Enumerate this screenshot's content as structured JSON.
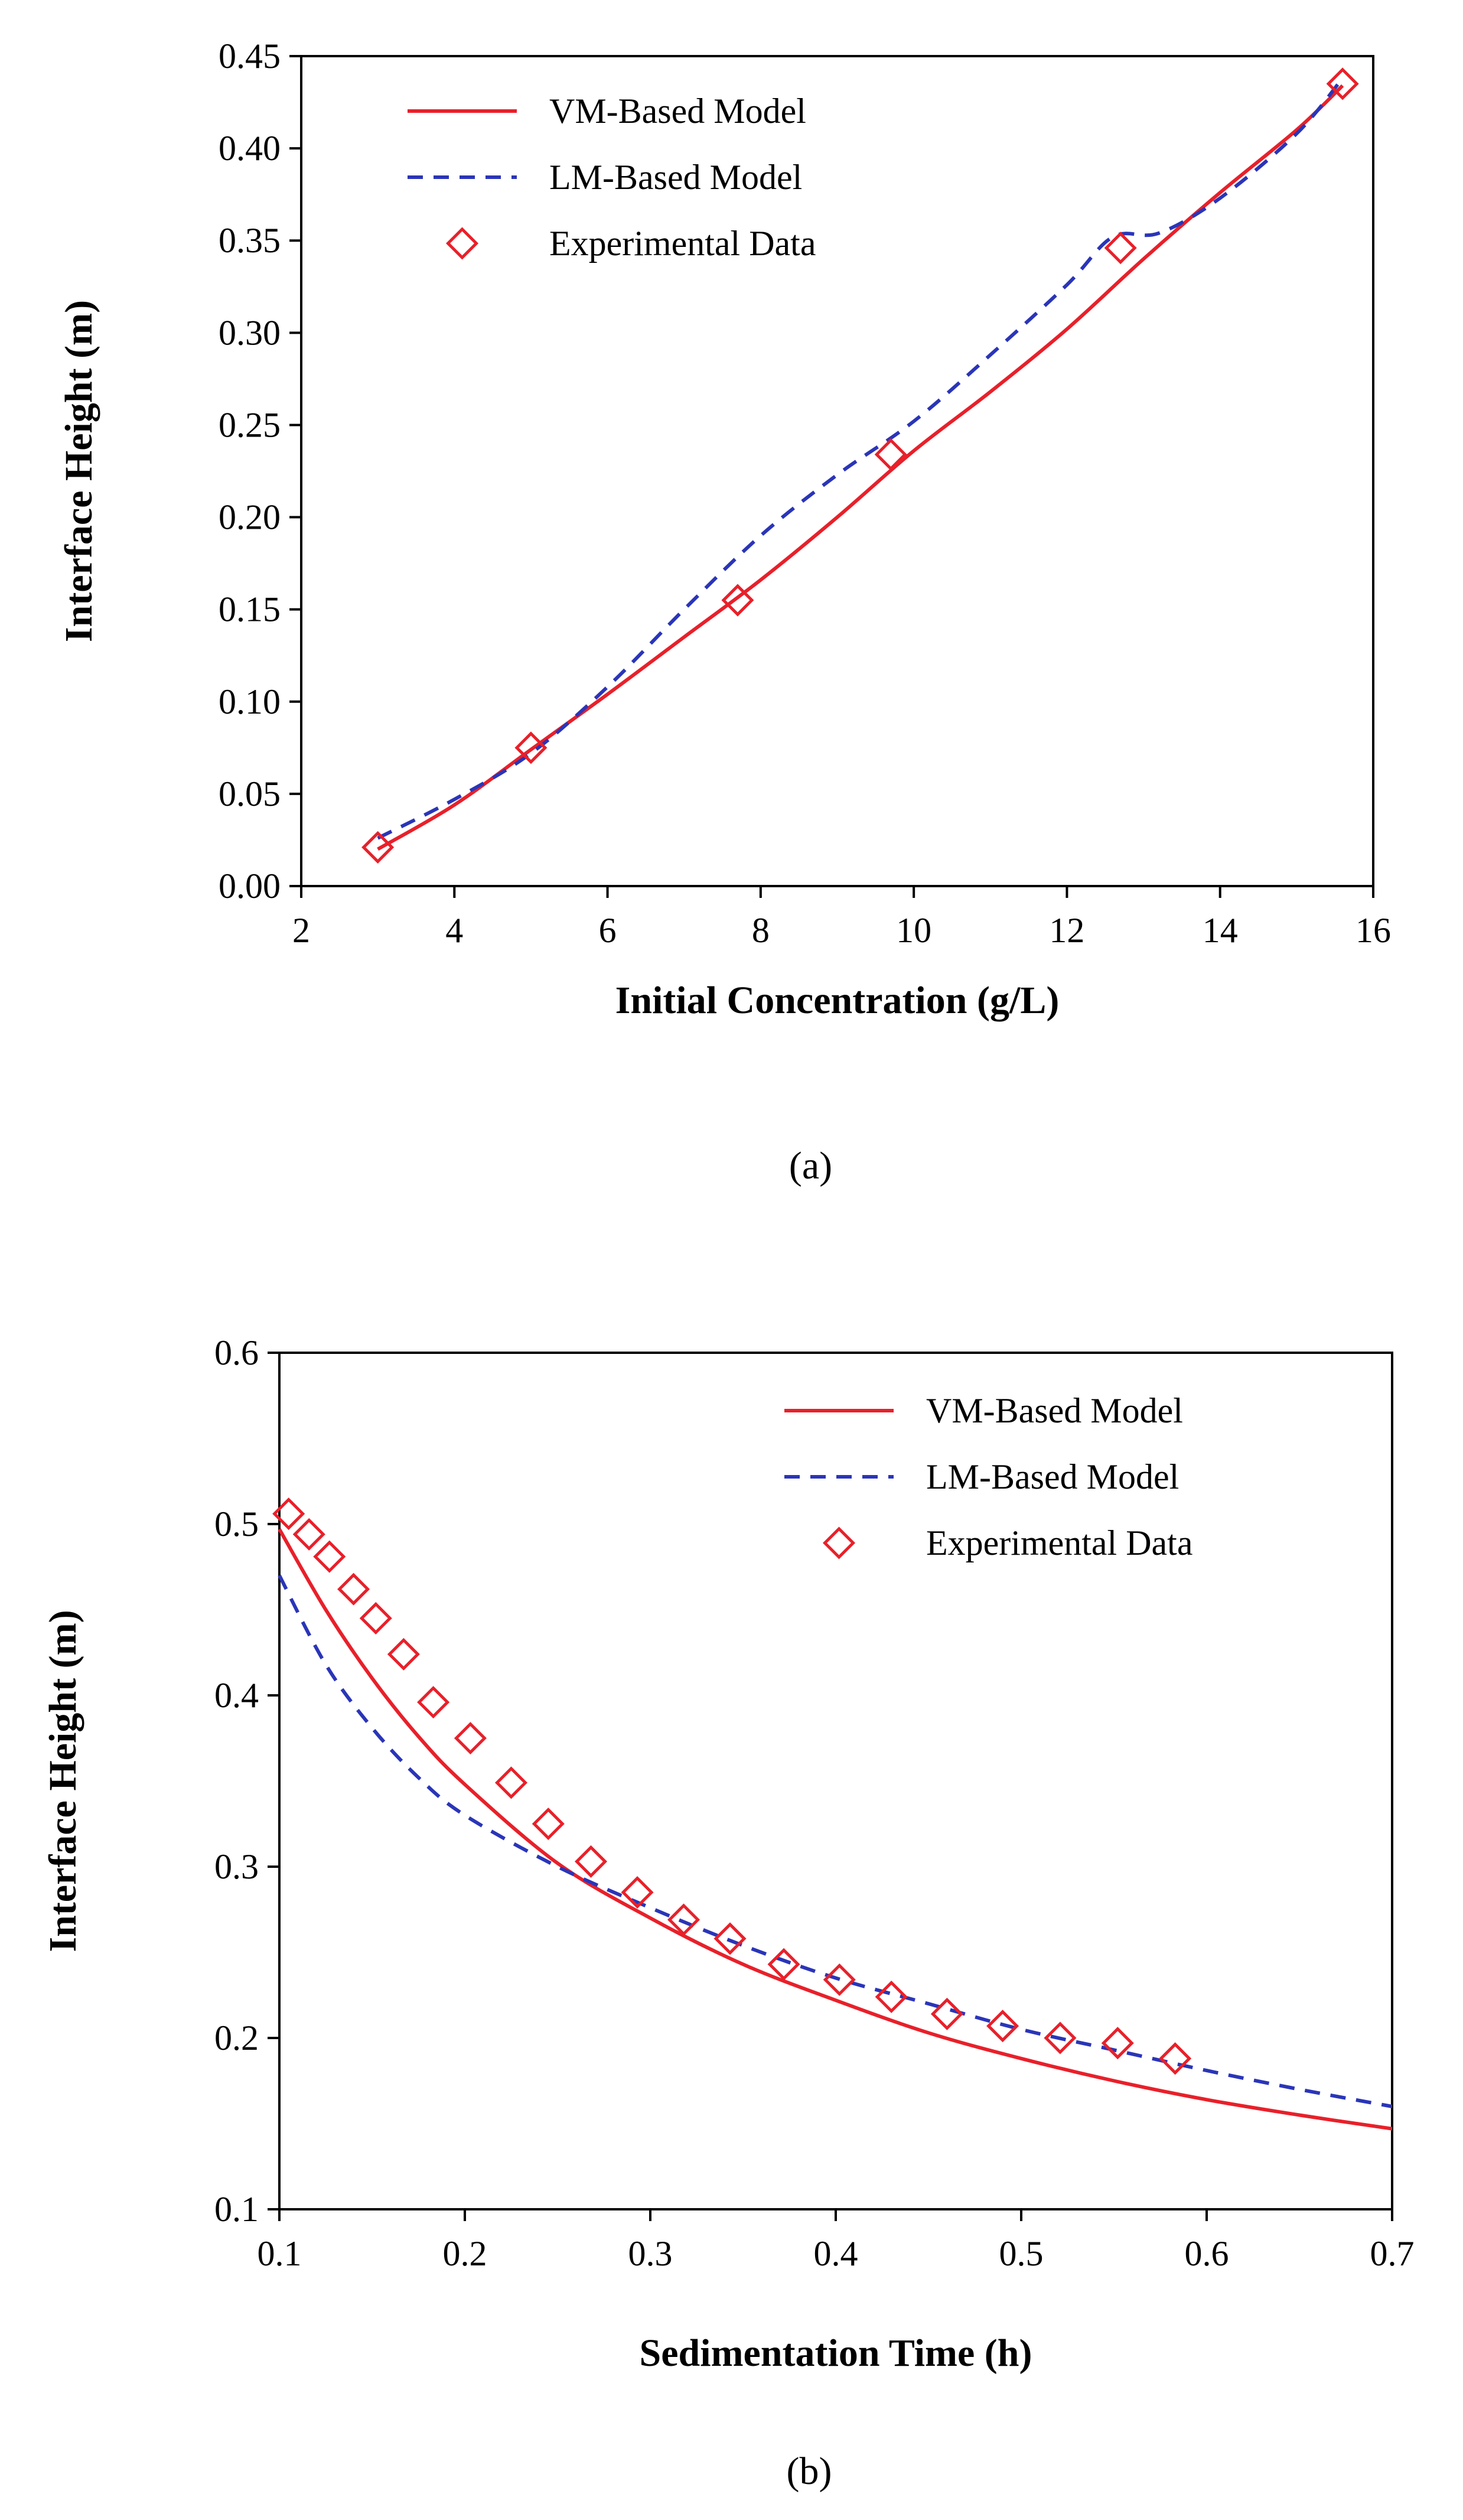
{
  "chart_data": [
    {
      "type": "line",
      "panel_label": "(a)",
      "xlabel": "Initial Concentration (g/L)",
      "ylabel": "Interface Height (m)",
      "xlim": [
        2,
        16
      ],
      "ylim": [
        0,
        0.45
      ],
      "xticks": [
        2,
        4,
        6,
        8,
        10,
        12,
        14,
        16
      ],
      "xtick_labels": [
        "2",
        "4",
        "6",
        "8",
        "10",
        "12",
        "14",
        "16"
      ],
      "yticks": [
        0,
        0.05,
        0.1,
        0.15,
        0.2,
        0.25,
        0.3,
        0.35,
        0.4,
        0.45
      ],
      "ytick_labels": [
        "0.00",
        "0.05",
        "0.10",
        "0.15",
        "0.20",
        "0.25",
        "0.30",
        "0.35",
        "0.40",
        "0.45"
      ],
      "legend_position": "top-left",
      "series": [
        {
          "name": "VM-Based Model",
          "style": "solid",
          "color": "#e8202a",
          "x": [
            3.0,
            4.0,
            5.0,
            6.0,
            7.0,
            8.0,
            9.0,
            10.0,
            11.0,
            12.0,
            13.0,
            14.0,
            15.0,
            15.6
          ],
          "y": [
            0.02,
            0.044,
            0.074,
            0.104,
            0.135,
            0.166,
            0.2,
            0.236,
            0.268,
            0.302,
            0.34,
            0.376,
            0.41,
            0.434
          ]
        },
        {
          "name": "LM-Based Model",
          "style": "dashed",
          "color": "#2a35b8",
          "x": [
            3.0,
            4.0,
            5.0,
            6.0,
            7.0,
            8.0,
            9.0,
            10.0,
            11.0,
            12.0,
            12.6,
            13.2,
            14.0,
            15.0,
            15.6
          ],
          "y": [
            0.026,
            0.047,
            0.072,
            0.108,
            0.15,
            0.19,
            0.223,
            0.252,
            0.288,
            0.326,
            0.352,
            0.354,
            0.373,
            0.408,
            0.438
          ]
        },
        {
          "name": "Experimental Data",
          "style": "marker",
          "color": "#e8202a",
          "x": [
            3.0,
            5.0,
            7.7,
            9.7,
            12.7,
            15.6
          ],
          "y": [
            0.021,
            0.075,
            0.155,
            0.234,
            0.346,
            0.435
          ]
        }
      ]
    },
    {
      "type": "line",
      "panel_label": "(b)",
      "xlabel": "Sedimentation Time (h)",
      "ylabel": "Interface Height (m)",
      "xlim": [
        0.1,
        0.7
      ],
      "ylim": [
        0.1,
        0.6
      ],
      "xticks": [
        0.1,
        0.2,
        0.3,
        0.4,
        0.5,
        0.6,
        0.7
      ],
      "xtick_labels": [
        "0.1",
        "0.2",
        "0.3",
        "0.4",
        "0.5",
        "0.6",
        "0.7"
      ],
      "yticks": [
        0.1,
        0.2,
        0.3,
        0.4,
        0.5,
        0.6
      ],
      "ytick_labels": [
        "0.1",
        "0.2",
        "0.3",
        "0.4",
        "0.5",
        "0.6"
      ],
      "legend_position": "top-right",
      "series": [
        {
          "name": "VM-Based Model",
          "style": "solid",
          "color": "#e8202a",
          "x": [
            0.1,
            0.125,
            0.15,
            0.175,
            0.2,
            0.25,
            0.3,
            0.35,
            0.4,
            0.45,
            0.5,
            0.55,
            0.6,
            0.65,
            0.7
          ],
          "y": [
            0.497,
            0.45,
            0.41,
            0.376,
            0.348,
            0.302,
            0.27,
            0.243,
            0.222,
            0.203,
            0.188,
            0.175,
            0.164,
            0.155,
            0.147
          ]
        },
        {
          "name": "LM-Based Model",
          "style": "dashed",
          "color": "#2a35b8",
          "x": [
            0.1,
            0.125,
            0.15,
            0.175,
            0.2,
            0.25,
            0.3,
            0.35,
            0.4,
            0.45,
            0.5,
            0.55,
            0.6,
            0.65,
            0.7
          ],
          "y": [
            0.47,
            0.418,
            0.381,
            0.352,
            0.33,
            0.3,
            0.276,
            0.254,
            0.235,
            0.22,
            0.205,
            0.193,
            0.181,
            0.17,
            0.16
          ]
        },
        {
          "name": "Experimental Data",
          "style": "marker",
          "color": "#e8202a",
          "x": [
            0.105,
            0.116,
            0.127,
            0.14,
            0.152,
            0.167,
            0.183,
            0.203,
            0.225,
            0.245,
            0.268,
            0.293,
            0.318,
            0.343,
            0.372,
            0.402,
            0.43,
            0.46,
            0.49,
            0.521,
            0.552,
            0.583
          ],
          "y": [
            0.506,
            0.494,
            0.481,
            0.462,
            0.445,
            0.424,
            0.396,
            0.375,
            0.349,
            0.325,
            0.303,
            0.285,
            0.269,
            0.258,
            0.243,
            0.234,
            0.224,
            0.214,
            0.207,
            0.2,
            0.197,
            0.188
          ]
        }
      ]
    }
  ]
}
